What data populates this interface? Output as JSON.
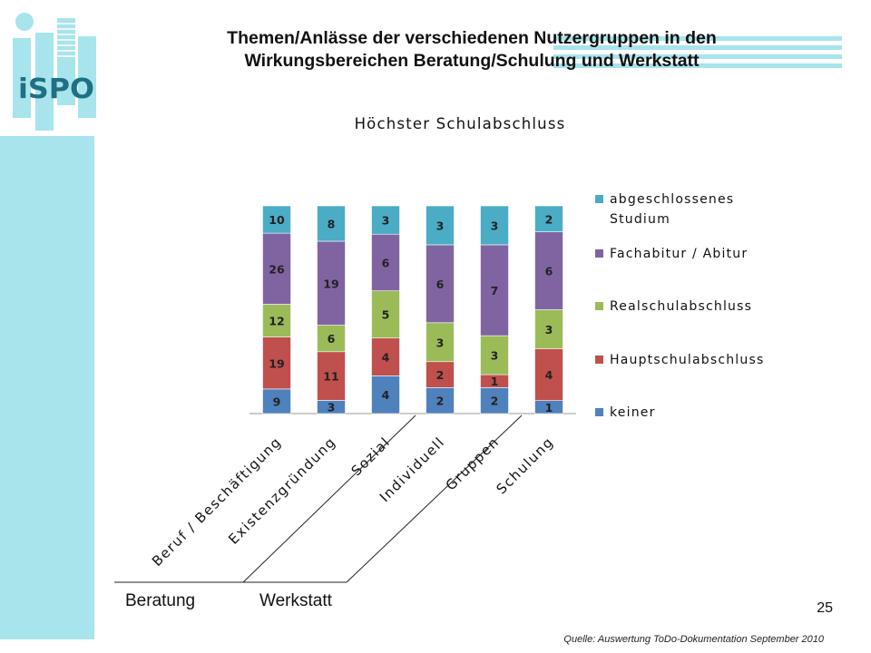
{
  "slide": {
    "title_line1": "Themen/Anlässe der verschiedenen Nutzergruppen in den",
    "title_line2": "Wirkungsbereichen Beratung/Schulung und Werkstatt",
    "logo_text": "iSPO",
    "group_labels": [
      "Beratung",
      "Werkstatt"
    ],
    "page_number": "25",
    "source": "Quelle: Auswertung ToDo-Dokumentation  September 2010",
    "accent_color": "#a8e4ec"
  },
  "chart_data": {
    "type": "bar",
    "stacked": true,
    "title": "Höchster Schulabschluss",
    "categories": [
      "Beruf / Beschäftigung",
      "Existenzgründung",
      "Sozial",
      "Individuell",
      "Gruppen",
      "Schulung"
    ],
    "series": [
      {
        "name": "keiner",
        "color": "#4f81bd",
        "values": [
          9,
          3,
          4,
          2,
          2,
          1
        ]
      },
      {
        "name": "Hauptschulabschluss",
        "color": "#c0504d",
        "values": [
          19,
          11,
          4,
          2,
          1,
          4
        ]
      },
      {
        "name": "Realschulabschluss",
        "color": "#9bbb59",
        "values": [
          12,
          6,
          5,
          3,
          3,
          3
        ]
      },
      {
        "name": "Fachabitur / Abitur",
        "color": "#8064a2",
        "values": [
          26,
          19,
          6,
          6,
          7,
          6
        ]
      },
      {
        "name": "abgeschlossenes Studium",
        "color": "#4bacc6",
        "values": [
          10,
          8,
          3,
          3,
          3,
          2
        ]
      }
    ],
    "normalized": true,
    "data_labels": true,
    "legend_position": "right",
    "grid": false
  }
}
